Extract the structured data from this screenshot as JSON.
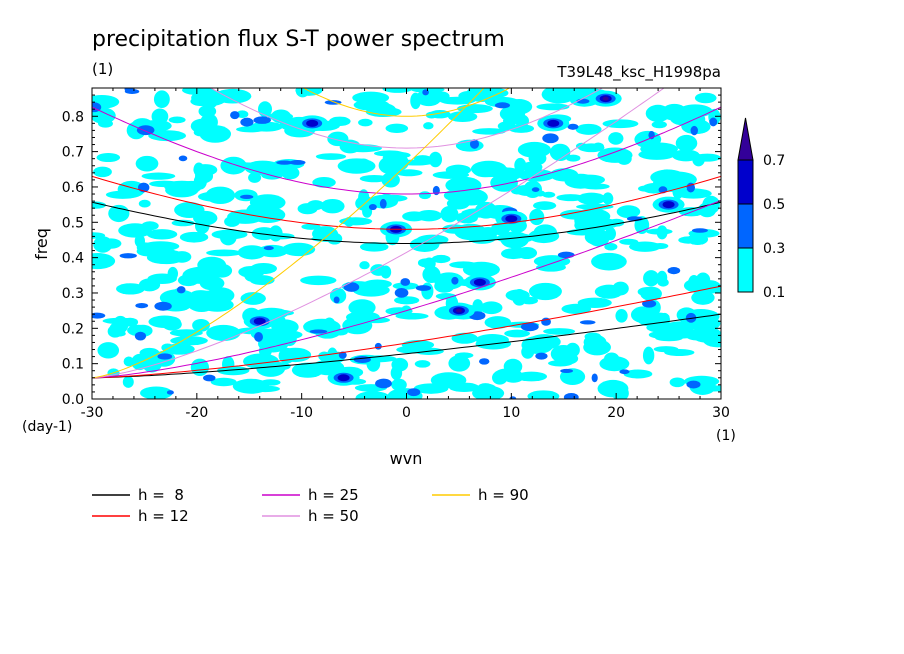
{
  "chart_data": {
    "type": "heatmap",
    "title": "precipitation flux S-T power spectrum",
    "subtitle_left": "(1)",
    "subtitle_right": "T39L48_ksc_H1998pa",
    "xlabel": "wvn",
    "ylabel": "freq",
    "x_unit": "(1)",
    "y_unit": "(day-1)",
    "xlim": [
      -30,
      30
    ],
    "ylim": [
      0,
      0.88
    ],
    "x_ticks": [
      -30,
      -20,
      -10,
      0,
      10,
      20,
      30
    ],
    "x_tick_labels": [
      "-30",
      "-20",
      "-10",
      "0",
      "10",
      "20",
      "30"
    ],
    "y_ticks": [
      0,
      0.1,
      0.2,
      0.3,
      0.4,
      0.5,
      0.6,
      0.7,
      0.8
    ],
    "y_tick_labels": [
      "0.0",
      "0.1",
      "0.2",
      "0.3",
      "0.4",
      "0.5",
      "0.6",
      "0.7",
      "0.8"
    ],
    "colorbar": {
      "levels": [
        0.1,
        0.3,
        0.5,
        0.7
      ],
      "labels": [
        "0.1",
        "0.3",
        "0.5",
        "0.7"
      ],
      "colors": [
        "#00ffff",
        "#0066ff",
        "#0000cc",
        "#330099"
      ]
    },
    "contour_fill": {
      "note": "noisy spectral power field, mostly 0.1-0.3 level with scattered higher-power spots",
      "hotspots": [
        {
          "x": 5,
          "y": 0.25,
          "level": 0.7
        },
        {
          "x": 19,
          "y": 0.85,
          "level": 0.7
        },
        {
          "x": 10,
          "y": 0.51,
          "level": 0.5
        },
        {
          "x": -1,
          "y": 0.48,
          "level": 0.5
        },
        {
          "x": -6,
          "y": 0.06,
          "level": 0.5
        },
        {
          "x": -9,
          "y": 0.78,
          "level": 0.5
        },
        {
          "x": 14,
          "y": 0.78,
          "level": 0.5
        },
        {
          "x": 7,
          "y": 0.33,
          "level": 0.5
        },
        {
          "x": -14,
          "y": 0.22,
          "level": 0.5
        },
        {
          "x": 25,
          "y": 0.55,
          "level": 0.5
        }
      ]
    },
    "dispersion_curves": [
      {
        "label": "h =  8",
        "h": 8,
        "color": "#000000"
      },
      {
        "label": "h = 12",
        "h": 12,
        "color": "#ff0000"
      },
      {
        "label": "h = 25",
        "h": 25,
        "color": "#cc00cc"
      },
      {
        "label": "h = 50",
        "h": 50,
        "color": "#e090e0"
      },
      {
        "label": "h = 90",
        "h": 90,
        "color": "#ffcc00"
      }
    ],
    "legend_placement": "below"
  }
}
